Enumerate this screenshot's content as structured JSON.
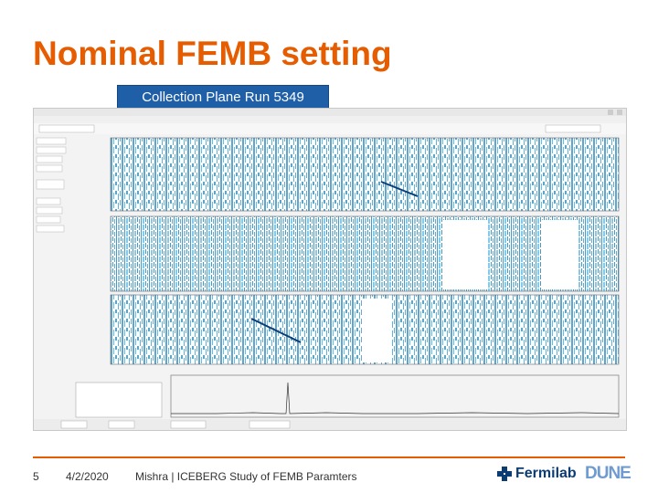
{
  "slide": {
    "title": "Nominal FEMB setting",
    "caption": "Collection Plane Run 5349",
    "page_number": "5",
    "date": "4/2/2020",
    "author_line": "Mishra | ICEBERG Study of FEMB Paramters"
  },
  "logos": {
    "fermilab": "Fermilab",
    "dune": "DUNE"
  },
  "colors": {
    "title": "#e65c00",
    "accent_line": "#e65c00",
    "caption_bg": "#1f5fa8",
    "plot_blue": "#1f8fc8"
  }
}
